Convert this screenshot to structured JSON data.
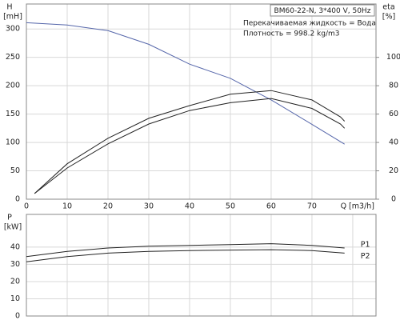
{
  "chart_data": [
    {
      "type": "line",
      "title": "BM60-22-N, 3*400 V, 50Hz",
      "annotations": [
        "Перекачиваемая жидкость = Вода",
        "Плотность = 998.2 kg/m3"
      ],
      "xlabel": "Q [m3/h]",
      "ylabel": "H",
      "ylabel_unit": "[mH]",
      "y2label": "eta",
      "y2label_unit": "[%]",
      "xlim": [
        0,
        85.7
      ],
      "xticks": [
        0,
        10,
        20,
        30,
        40,
        50,
        60,
        70
      ],
      "ylim": [
        0,
        344
      ],
      "yticks": [
        0,
        50,
        100,
        150,
        200,
        250,
        300
      ],
      "y2lim": [
        0,
        137.6
      ],
      "y2ticks": [
        0,
        20,
        40,
        60,
        80,
        100
      ],
      "grid": true,
      "show_xtick_labels": true,
      "series": [
        {
          "color": "#5566aa",
          "x": [
            0,
            10,
            20,
            30,
            40,
            50,
            60,
            70,
            78
          ],
          "values": [
            311,
            307,
            297,
            273,
            238,
            213,
            175,
            132,
            97
          ]
        },
        {
          "color": "#222222",
          "axis": "y2",
          "x": [
            2,
            10,
            20,
            30,
            40,
            50,
            60,
            70,
            77,
            78
          ],
          "values": [
            4,
            25,
            43,
            57,
            66,
            74,
            76.6,
            70,
            58,
            55
          ]
        },
        {
          "color": "#222222",
          "axis": "y2",
          "x": [
            2,
            10,
            20,
            30,
            40,
            50,
            60,
            70,
            77,
            78
          ],
          "values": [
            4,
            22,
            39,
            53,
            62.5,
            68,
            71,
            64,
            53,
            50
          ]
        }
      ]
    },
    {
      "type": "line",
      "ylabel": "P",
      "ylabel_unit": "[kW]",
      "xlim": [
        0,
        85.7
      ],
      "xticks": [
        0,
        10,
        20,
        30,
        40,
        50,
        60,
        70,
        80
      ],
      "ylim": [
        0,
        59
      ],
      "yticks": [
        0,
        10,
        20,
        30,
        40
      ],
      "grid": true,
      "show_xtick_labels": false,
      "series": [
        {
          "name": "P1",
          "color": "#222222",
          "x": [
            0,
            10,
            20,
            30,
            40,
            50,
            60,
            70,
            78
          ],
          "values": [
            34.5,
            37.5,
            39.5,
            40.5,
            41,
            41.5,
            42,
            41,
            39.5
          ]
        },
        {
          "name": "P2",
          "color": "#222222",
          "x": [
            0,
            10,
            20,
            30,
            40,
            50,
            60,
            70,
            78
          ],
          "values": [
            31.5,
            34.5,
            36.5,
            37.5,
            38,
            38.3,
            38.5,
            38,
            36.5
          ]
        }
      ]
    }
  ]
}
